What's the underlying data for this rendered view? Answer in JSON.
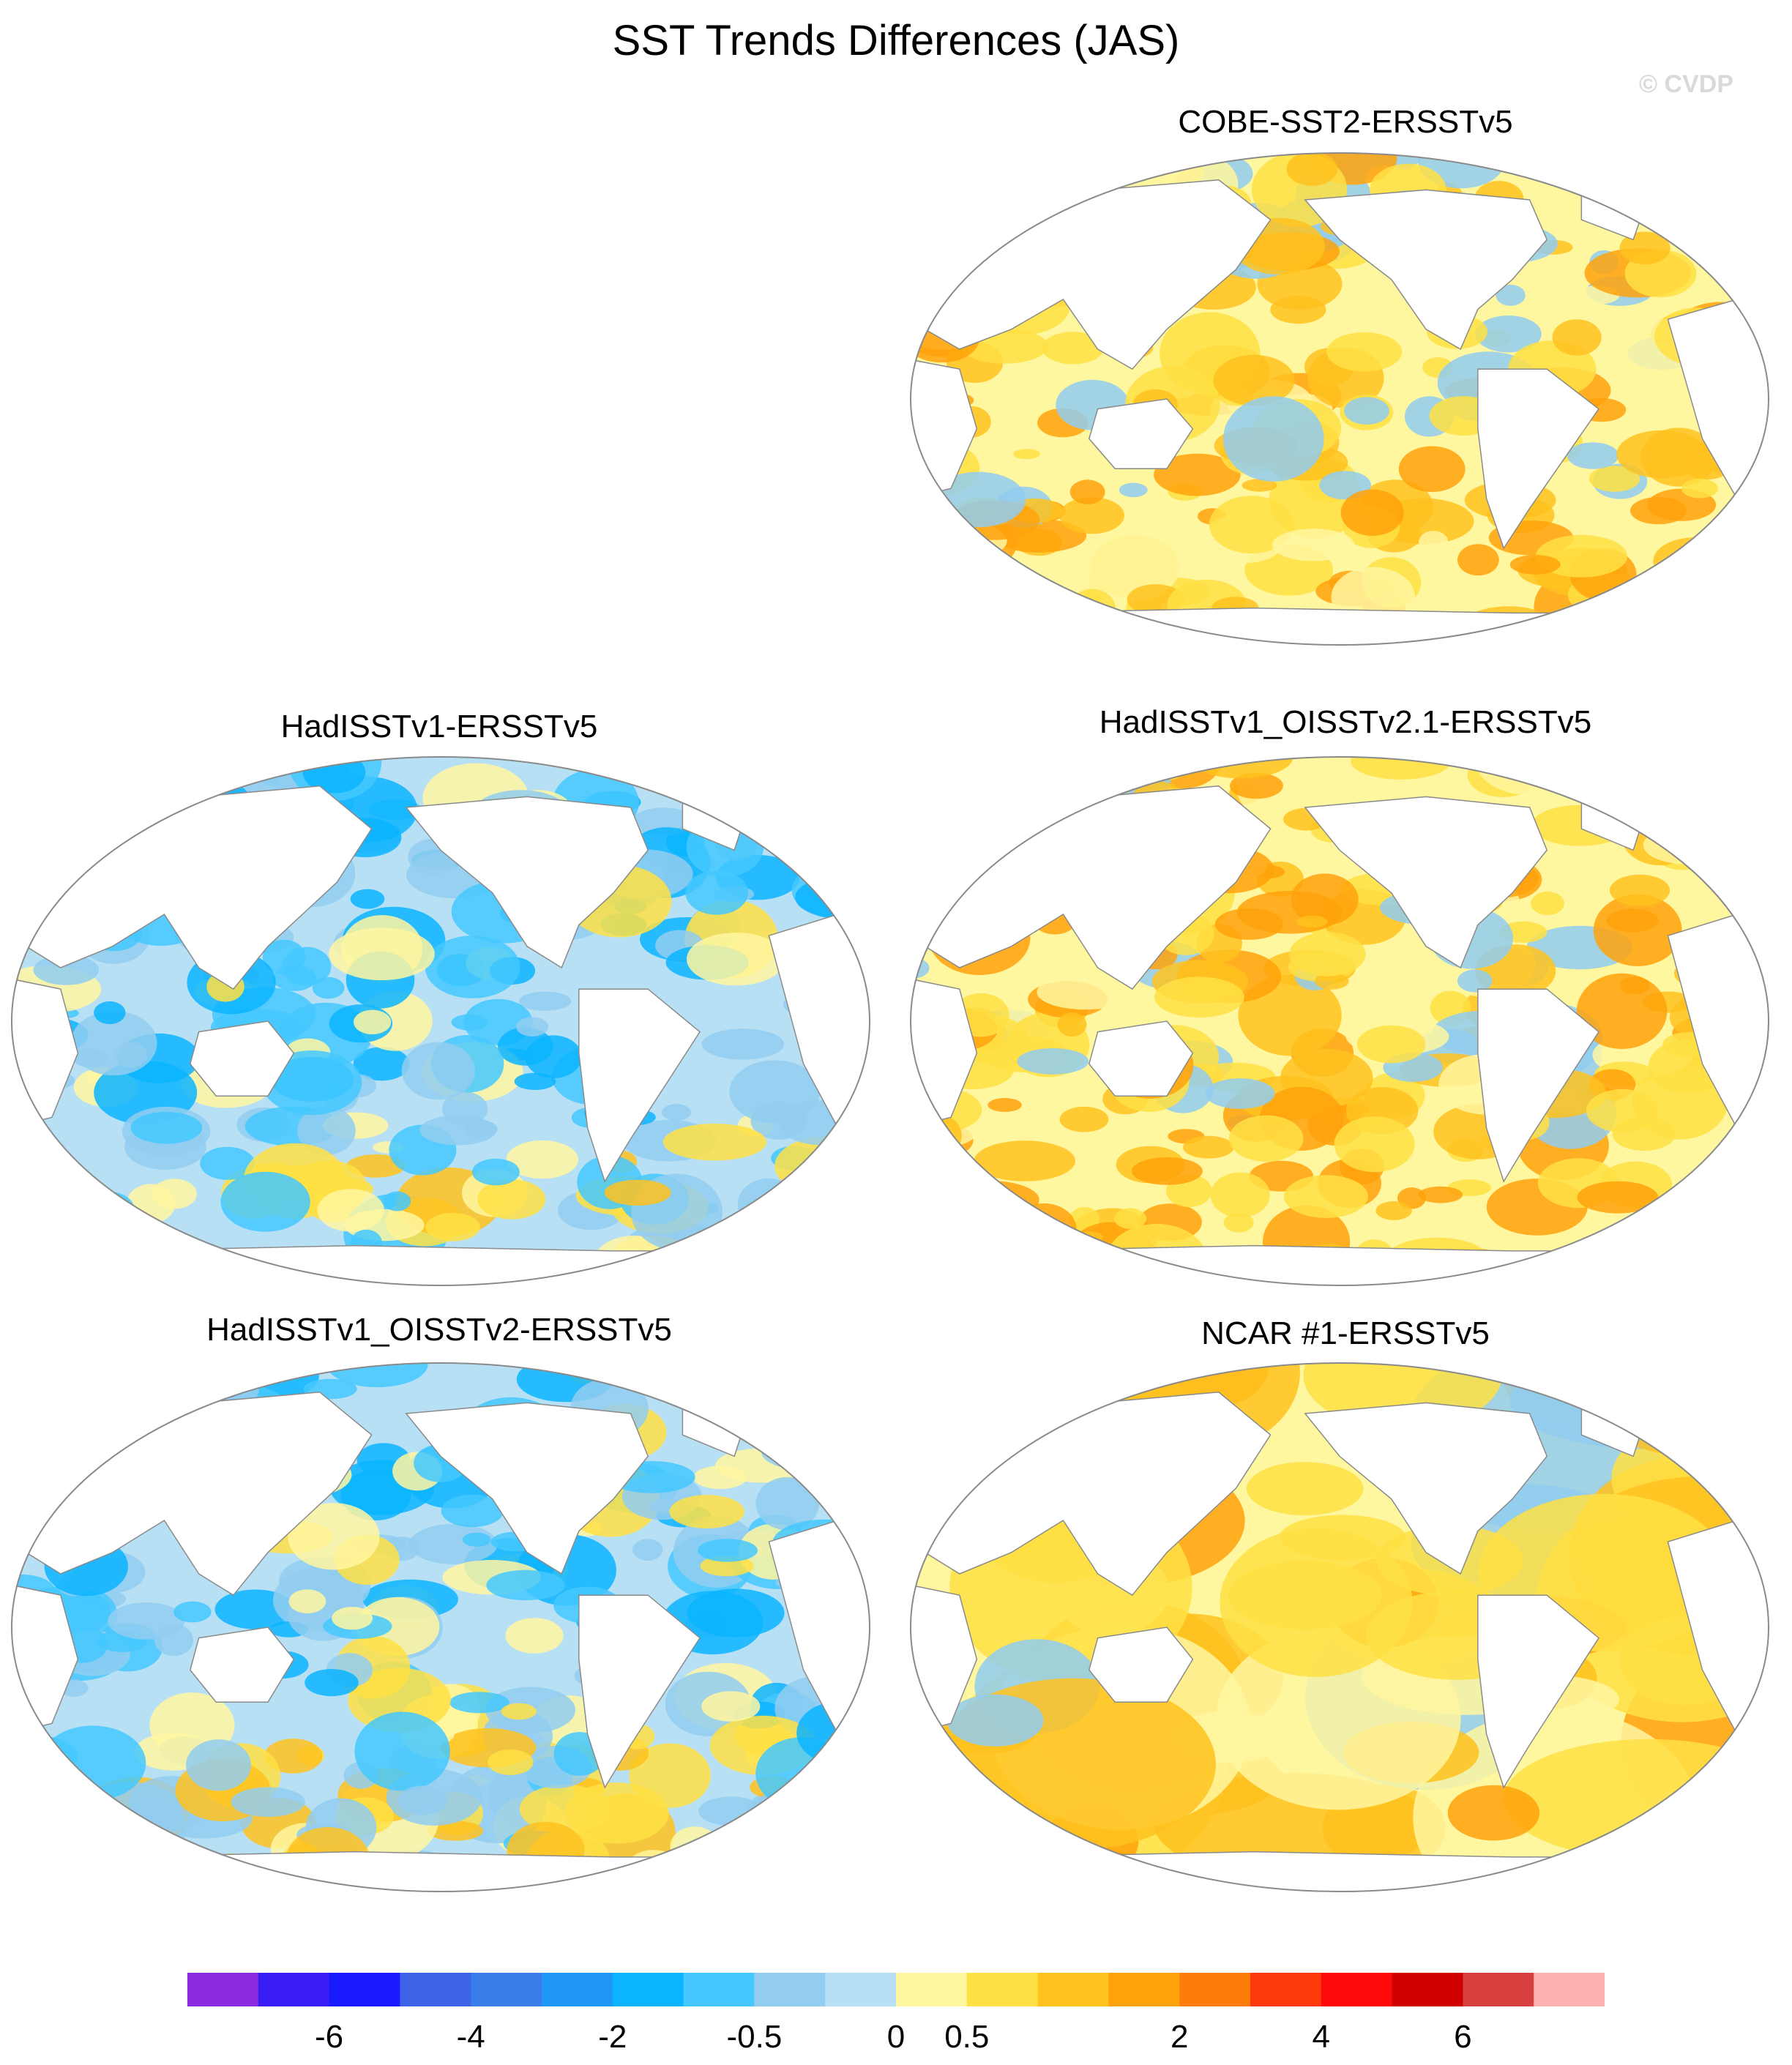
{
  "title": "SST Trends Differences (JAS)",
  "watermark": "© CVDP",
  "panels": [
    {
      "title": "COBE-SST2-ERSSTv5"
    },
    {
      "title": "HadISSTv1-ERSSTv5"
    },
    {
      "title": "HadISSTv1_OISSTv2.1-ERSSTv5"
    },
    {
      "title": "HadISSTv1_OISSTv2-ERSSTv5"
    },
    {
      "title": "NCAR #1-ERSSTv5"
    }
  ],
  "colorbar": {
    "colors": [
      "#8a2be2",
      "#3a1cf5",
      "#1a1aff",
      "#3e63e6",
      "#3a7de8",
      "#1f98f5",
      "#0ab4ff",
      "#44c8ff",
      "#92cdf0",
      "#b8e0f5",
      "#fff6a0",
      "#ffe044",
      "#ffc21e",
      "#ffa20a",
      "#ff7c0a",
      "#ff3a0a",
      "#ff0a0a",
      "#d00000",
      "#d84040",
      "#ffb0b0"
    ],
    "labels": [
      "-6",
      "-4",
      "-2",
      "-0.5",
      "0",
      "0.5",
      "2",
      "4",
      "6"
    ],
    "label_boundaries": [
      2,
      4,
      6,
      8,
      10,
      11,
      14,
      16,
      18
    ]
  },
  "map_palette": {
    "land": "#ffffff",
    "coast": "#8a8a8a",
    "weak_pos": "#fff6a0",
    "pos": "#ffe044",
    "strong_pos": "#ffc21e",
    "very_strong_pos": "#ffa20a",
    "weak_neg": "#b8e0f5",
    "neg": "#92cdf0",
    "strong_neg": "#44c8ff",
    "very_strong_neg": "#0ab4ff"
  }
}
